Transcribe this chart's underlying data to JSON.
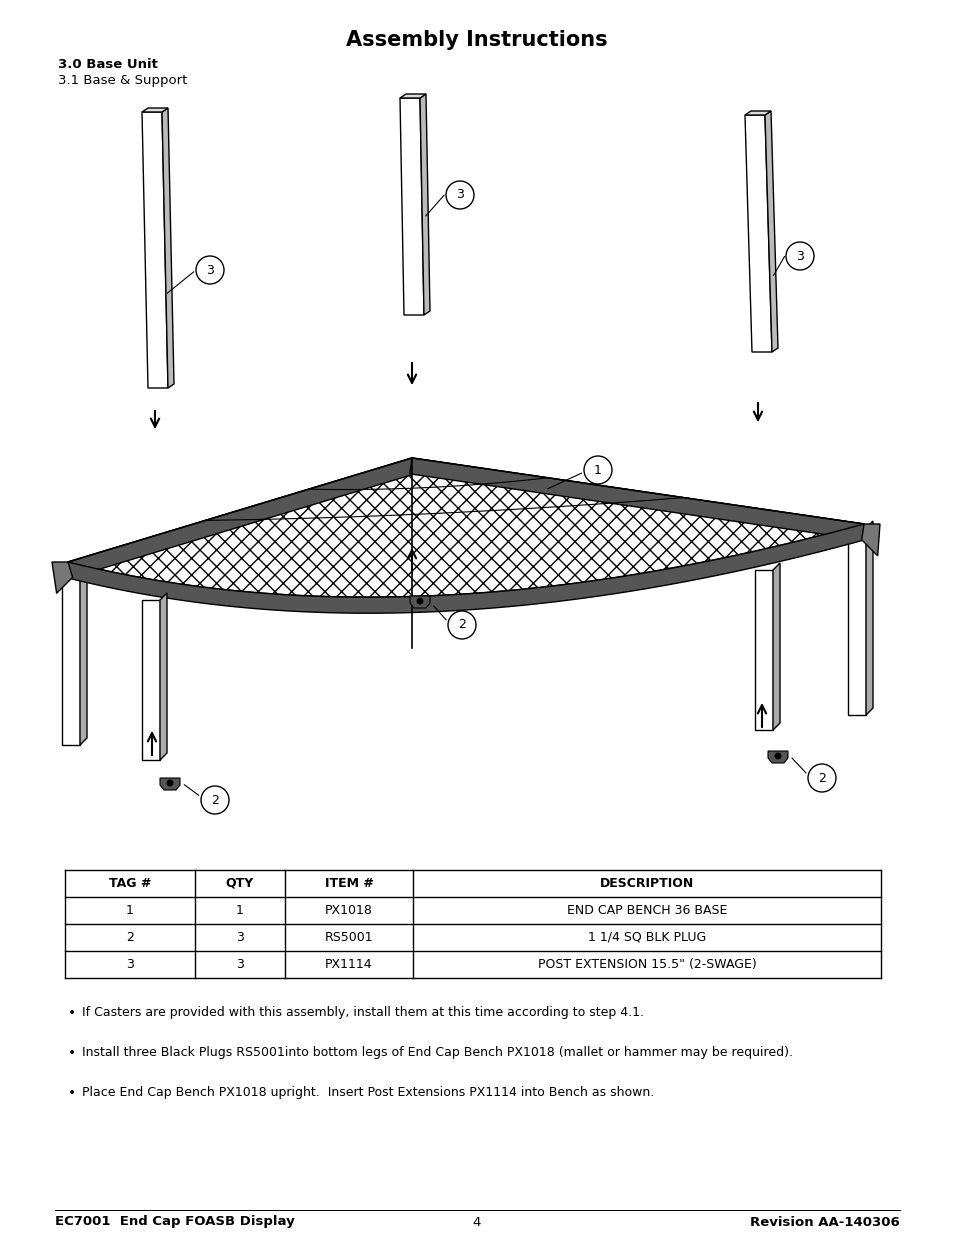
{
  "title": "Assembly Instructions",
  "section_bold": "3.0 Base Unit",
  "section_normal": "3.1 Base & Support",
  "table_headers": [
    "TAG #",
    "QTY",
    "ITEM #",
    "DESCRIPTION"
  ],
  "table_rows": [
    [
      "1",
      "1",
      "PX1018",
      "END CAP BENCH 36 BASE"
    ],
    [
      "2",
      "3",
      "RS5001",
      "1 1/4 SQ BLK PLUG"
    ],
    [
      "3",
      "3",
      "PX1114",
      "POST EXTENSION 15.5\" (2-SWAGE)"
    ]
  ],
  "bullets": [
    "If Casters are provided with this assembly, install them at this time according to step 4.1.",
    "Install three Black Plugs RS5001into bottom legs of End Cap Bench PX1018 (mallet or hammer may be required).",
    "Place End Cap Bench PX1018 upright.  Insert Post Extensions PX1114 into Bench as shown."
  ],
  "footer_left": "EC7001  End Cap FOASB Display",
  "footer_center": "4",
  "footer_right": "Revision AA-140306",
  "bg_color": "#ffffff",
  "text_color": "#000000"
}
